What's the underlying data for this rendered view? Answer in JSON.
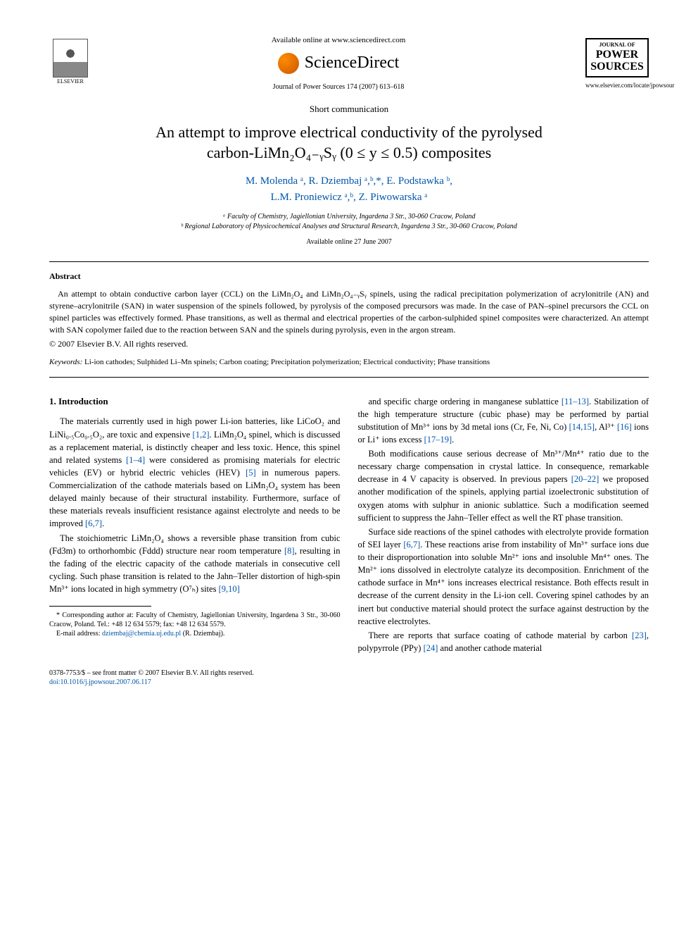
{
  "header": {
    "available_text": "Available online at www.sciencedirect.com",
    "sd_brand": "ScienceDirect",
    "journal_ref": "Journal of Power Sources 174 (2007) 613–618",
    "elsevier_label": "ELSEVIER",
    "journal_logo_top": "JOURNAL OF",
    "journal_logo_main1": "POWER",
    "journal_logo_main2": "SOURCES",
    "journal_url": "www.elsevier.com/locate/jpowsour"
  },
  "article": {
    "type": "Short communication",
    "title_line1": "An attempt to improve electrical conductivity of the pyrolysed",
    "title_line2": "carbon-LiMn₂O₄₋ᵧSᵧ (0 ≤ y ≤ 0.5) composites",
    "authors_line1": "M. Molenda ᵃ, R. Dziembaj ᵃ,ᵇ,*, E. Podstawka ᵇ,",
    "authors_line2": "L.M. Proniewicz ᵃ,ᵇ, Z. Piwowarska ᵃ",
    "affil_a": "ᵃ Faculty of Chemistry, Jagiellonian University, Ingardena 3 Str., 30-060 Cracow, Poland",
    "affil_b": "ᵇ Regional Laboratory of Physicochemical Analyses and Structural Research, Ingardena 3 Str., 30-060 Cracow, Poland",
    "date": "Available online 27 June 2007"
  },
  "abstract": {
    "heading": "Abstract",
    "text": "An attempt to obtain conductive carbon layer (CCL) on the LiMn₂O₄ and LiMn₂O₄₋ᵧSᵧ spinels, using the radical precipitation polymerization of acrylonitrile (AN) and styrene–acrylonitrile (SAN) in water suspension of the spinels followed, by pyrolysis of the composed precursors was made. In the case of PAN–spinel precursors the CCL on spinel particles was effectively formed. Phase transitions, as well as thermal and electrical properties of the carbon-sulphided spinel composites were characterized. An attempt with SAN copolymer failed due to the reaction between SAN and the spinels during pyrolysis, even in the argon stream.",
    "copyright": "© 2007 Elsevier B.V. All rights reserved."
  },
  "keywords": {
    "label": "Keywords:",
    "text": "Li-ion cathodes; Sulphided Li–Mn spinels; Carbon coating; Precipitation polymerization; Electrical conductivity; Phase transitions"
  },
  "body": {
    "section1_heading": "1.  Introduction",
    "p1": "The materials currently used in high power Li-ion batteries, like LiCoO₂ and LiNi₀.₅Co₀.₅O₂, are toxic and expensive [1,2]. LiMn₂O₄ spinel, which is discussed as a replacement material, is distinctly cheaper and less toxic. Hence, this spinel and related systems [1–4] were considered as promising materials for electric vehicles (EV) or hybrid electric vehicles (HEV) [5] in numerous papers. Commercialization of the cathode materials based on LiMn₂O₄ system has been delayed mainly because of their structural instability. Furthermore, surface of these materials reveals insufficient resistance against electrolyte and needs to be improved [6,7].",
    "p2": "The stoichiometric LiMn₂O₄ shows a reversible phase transition from cubic (Fd3m) to orthorhombic (Fddd) structure near room temperature [8], resulting in the fading of the electric capacity of the cathode materials in consecutive cell cycling. Such phase transition is related to the Jahn–Teller distortion of high-spin Mn³⁺ ions located in high symmetry (O⁷ₕ) sites [9,10]",
    "p3": "and specific charge ordering in manganese sublattice [11–13]. Stabilization of the high temperature structure (cubic phase) may be performed by partial substitution of Mn³⁺ ions by 3d metal ions (Cr, Fe, Ni, Co) [14,15], Al³⁺ [16] ions or Li⁺ ions excess [17–19].",
    "p4": "Both modifications cause serious decrease of Mn³⁺/Mn⁴⁺ ratio due to the necessary charge compensation in crystal lattice. In consequence, remarkable decrease in 4 V capacity is observed. In previous papers [20–22] we proposed another modification of the spinels, applying partial izoelectronic substitution of oxygen atoms with sulphur in anionic sublattice. Such a modification seemed sufficient to suppress the Jahn–Teller effect as well the RT phase transition.",
    "p5": "Surface side reactions of the spinel cathodes with electrolyte provide formation of SEI layer [6,7]. These reactions arise from instability of Mn³⁺ surface ions due to their disproportionation into soluble Mn²⁺ ions and insoluble Mn⁴⁺ ones. The Mn²⁺ ions dissolved in electrolyte catalyze its decomposition. Enrichment of the cathode surface in Mn⁴⁺ ions increases electrical resistance. Both effects result in decrease of the current density in the Li-ion cell. Covering spinel cathodes by an inert but conductive material should protect the surface against destruction by the reactive electrolytes.",
    "p6": "There are reports that surface coating of cathode material by carbon [23], polypyrrole (PPy) [24] and another cathode material"
  },
  "footnote": {
    "corr": "* Corresponding author at: Faculty of Chemistry, Jagiellonian University, Ingardena 3 Str., 30-060 Cracow, Poland. Tel.: +48 12 634 5579; fax: +48 12 634 5579.",
    "email_label": "E-mail address:",
    "email": "dziembaj@chemia.uj.edu.pl",
    "email_suffix": "(R. Dziembaj)."
  },
  "footer": {
    "line1": "0378-7753/$ – see front matter © 2007 Elsevier B.V. All rights reserved.",
    "doi": "doi:10.1016/j.jpowsour.2007.06.117"
  },
  "colors": {
    "link": "#0055aa",
    "text": "#000000",
    "bg": "#ffffff"
  }
}
